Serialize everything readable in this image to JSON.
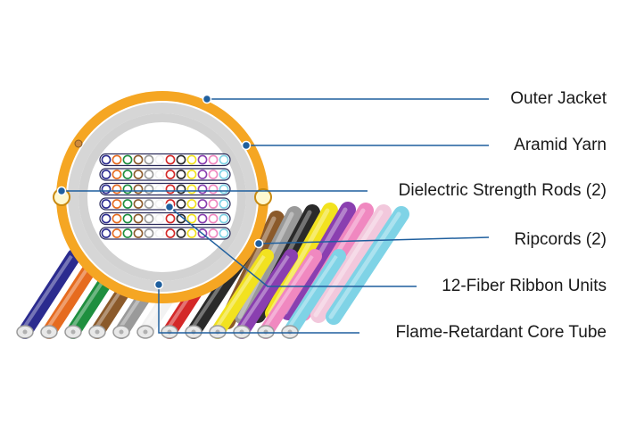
{
  "colors": {
    "outer_jacket": "#f5a623",
    "aramid_yarn": "#cfcfcf",
    "core_tube": "#ffffff",
    "leader_line": "#1f5f9e",
    "leader_dot": "#1f5f9e",
    "ribbon_outline": "#2a2a5a"
  },
  "labels": [
    {
      "key": "outer_jacket",
      "text": "Outer Jacket"
    },
    {
      "key": "aramid_yarn",
      "text": "Aramid Yarn"
    },
    {
      "key": "strength_rods",
      "text": "Dielectric Strength Rods (2)"
    },
    {
      "key": "ripcords",
      "text": "Ripcords (2)"
    },
    {
      "key": "ribbon_units",
      "text": "12-Fiber Ribbon Units"
    },
    {
      "key": "core_tube",
      "text": "Flame-Retardant Core Tube"
    }
  ],
  "fiber_colors": [
    "#2b2b8f",
    "#e66b1f",
    "#1f8f3f",
    "#8b5a2b",
    "#9a9a9a",
    "#f2f2f2",
    "#d42828",
    "#2a2a2a",
    "#f2e21f",
    "#8a3fb0",
    "#f088c0",
    "#7fd3e6"
  ]
}
